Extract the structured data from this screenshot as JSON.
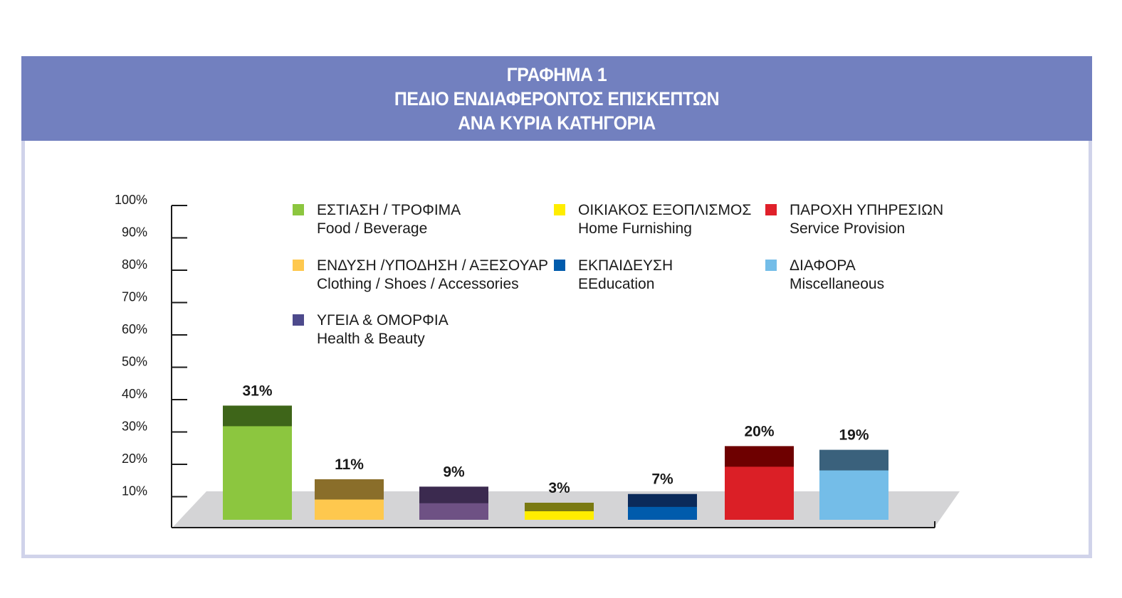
{
  "header": {
    "line1": "ΓΡΑΦΗΜΑ 1",
    "line2": "ΠΕΔΙΟ ΕΝΔΙΑΦΕΡΟΝΤΟΣ ΕΠΙΣΚΕΠΤΩΝ",
    "line3": "ΑΝΑ ΚΥΡΙΑ ΚΑΤΗΓΟΡΙΑ"
  },
  "colors": {
    "header_bg": "#7280bf",
    "frame_border": "#d0d3ea",
    "floor": "#d4d4d6"
  },
  "legend": [
    {
      "gr": "ΕΣΤΙΑΣΗ / ΤΡΟΦΙΜΑ",
      "en": "Food  / Beverage",
      "color": "#8cc63f"
    },
    {
      "gr": "ΟΙΚΙΑΚΟΣ ΕΞΟΠΛΙΣΜΟΣ",
      "en": "Home Furnishing",
      "color": "#ffed00"
    },
    {
      "gr": "ΠΑΡΟΧΗ ΥΠΗΡΕΣΙΩΝ",
      "en": "Service Provision",
      "color": "#e0202a"
    },
    {
      "gr": "ΕΝΔΥΣΗ /ΥΠΟΔΗΣΗ / ΑΞΕΣΟΥΑΡ",
      "en": "Clothing / Shoes / Accessories",
      "color": "#fec84e"
    },
    {
      "gr": "ΕΚΠΑΙΔΕΥΣΗ",
      "en": "EEducation",
      "color": "#005bac"
    },
    {
      "gr": "ΔΙΑΦΟΡΑ",
      "en": "Miscellaneous",
      "color": "#74bde8"
    },
    {
      "gr": "ΥΓΕΙΑ & ΟΜΟΡΦΙΑ",
      "en": "Health & Beauty",
      "color": "#4d4a8c"
    }
  ],
  "chart_data": {
    "type": "bar",
    "title": "ΓΡΑΦΗΜΑ 1 ΠΕΔΙΟ ΕΝΔΙΑΦΕΡΟΝΤΟΣ ΕΠΙΣΚΕΠΤΩΝ ΑΝΑ ΚΥΡΙΑ ΚΑΤΗΓΟΡΙΑ",
    "ylim": [
      0,
      100
    ],
    "y_ticks": [
      "10%",
      "20%",
      "30%",
      "40%",
      "50%",
      "60%",
      "70%",
      "80%",
      "90%",
      "100%"
    ],
    "categories": [
      "ΕΣΤΙΑΣΗ / ΤΡΟΦΙΜΑ",
      "ΕΝΔΥΣΗ /ΥΠΟΔΗΣΗ / ΑΞΕΣΟΥΑΡ",
      "ΥΓΕΙΑ & ΟΜΟΡΦΙΑ",
      "ΟΙΚΙΑΚΟΣ ΕΞΟΠΛΙΣΜΟΣ",
      "ΕΚΠΑΙΔΕΥΣΗ",
      "ΠΑΡΟΧΗ ΥΠΗΡΕΣΙΩΝ",
      "ΔΙΑΦΟΡΑ"
    ],
    "values": [
      31,
      11,
      9,
      3,
      7,
      20,
      19
    ],
    "labels": [
      "31%",
      "11%",
      "9%",
      "3%",
      "7%",
      "20%",
      "19%"
    ],
    "front_colors": [
      "#8cc63f",
      "#fec84e",
      "#6e5184",
      "#ffed00",
      "#005bac",
      "#db1f26",
      "#74bde8"
    ],
    "top_colors": [
      "#3e6519",
      "#8a6e2a",
      "#3b2a4f",
      "#7a7a12",
      "#0b2a5a",
      "#6e0000",
      "#3a617c"
    ],
    "legend_position": "top",
    "grid": false
  }
}
